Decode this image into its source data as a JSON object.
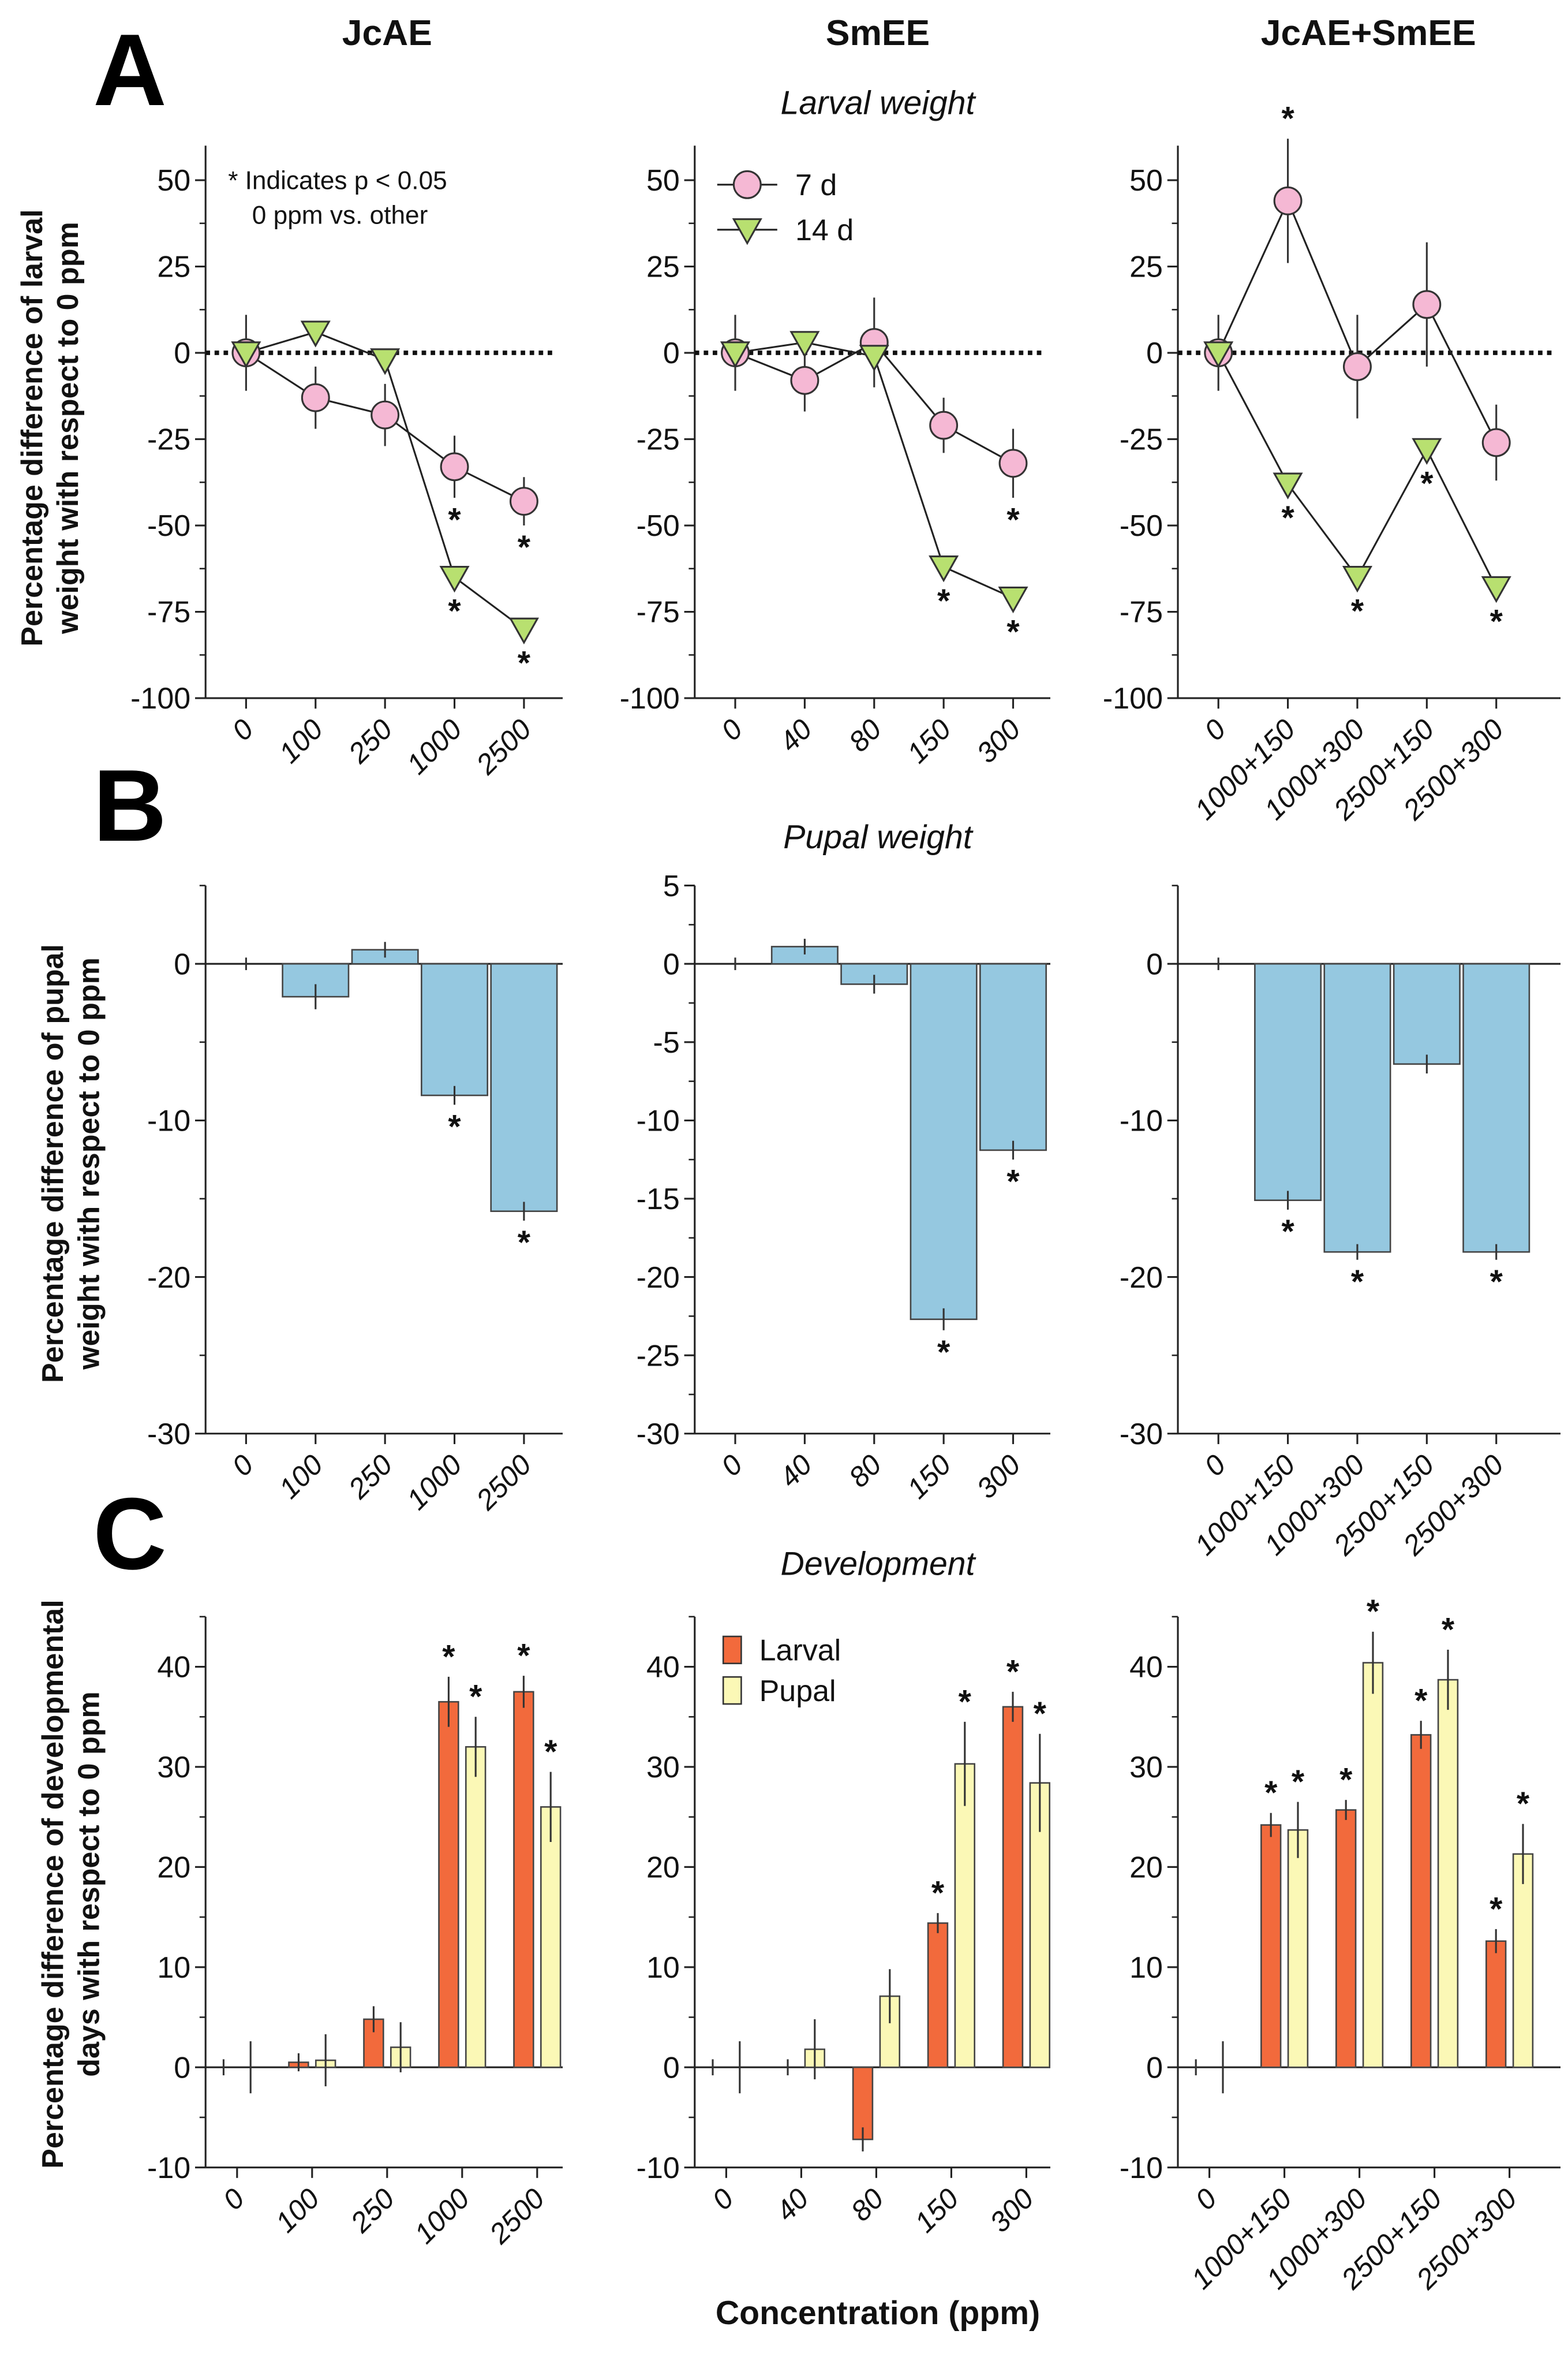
{
  "columns": [
    "JcAE",
    "SmEE",
    "JcAE+SmEE"
  ],
  "panel_letters": [
    "A",
    "B",
    "C"
  ],
  "subtitles": [
    "Larval weight",
    "Pupal weight",
    "Development"
  ],
  "ylabels": [
    [
      "Percentage difference of larval",
      "weight with respect to 0 ppm"
    ],
    [
      "Percentage difference of pupal",
      "weight with respect to 0 ppm"
    ],
    [
      "Percentage difference of developmental",
      "days with respect to 0 ppm"
    ]
  ],
  "xlabel": "Concentration (ppm)",
  "note": [
    "* Indicates p < 0.05",
    "0 ppm vs. other"
  ],
  "significance_marker": "*",
  "colors": {
    "day7": "#f5b8d4",
    "day14": "#b8e070",
    "pupal_weight_bar": "#95c8e0",
    "larval_bar": "#f26a3c",
    "pupal_bar": "#fbf8b6"
  },
  "chart_data": [
    {
      "type": "line",
      "title": "Larval weight",
      "ylim": [
        -100,
        60
      ],
      "yticks": [
        "50",
        "25",
        "0",
        "-25",
        "-50",
        "-75",
        "-100"
      ],
      "zero_line": "dotted",
      "legend": "top-left (SmEE panel)",
      "groups": [
        {
          "column": "JcAE",
          "categories": [
            "0",
            "100",
            "250",
            "1000",
            "2500"
          ],
          "series": [
            {
              "name": "7 d",
              "values": [
                0,
                -13,
                -18,
                -33,
                -43
              ],
              "errors": [
                11,
                9,
                9,
                9,
                7
              ],
              "significant": [
                false,
                false,
                false,
                true,
                true
              ]
            },
            {
              "name": "14 d",
              "values": [
                0,
                6,
                -2,
                -65,
                -80
              ],
              "errors": [
                0,
                0,
                0,
                0,
                0
              ],
              "significant": [
                false,
                false,
                false,
                true,
                true
              ]
            }
          ]
        },
        {
          "column": "SmEE",
          "categories": [
            "0",
            "40",
            "80",
            "150",
            "300"
          ],
          "series": [
            {
              "name": "7 d",
              "values": [
                0,
                -8,
                3,
                -21,
                -32
              ],
              "errors": [
                11,
                9,
                13,
                8,
                10
              ],
              "significant": [
                false,
                false,
                false,
                false,
                true
              ]
            },
            {
              "name": "14 d",
              "values": [
                0,
                3,
                -1,
                -62,
                -71
              ],
              "errors": [
                0,
                0,
                0,
                0,
                0
              ],
              "significant": [
                false,
                false,
                false,
                true,
                true
              ]
            }
          ]
        },
        {
          "column": "JcAE+SmEE",
          "categories": [
            "0",
            "1000+150",
            "1000+300",
            "2500+150",
            "2500+300"
          ],
          "series": [
            {
              "name": "7 d",
              "values": [
                0,
                44,
                -4,
                14,
                -26
              ],
              "errors": [
                11,
                18,
                15,
                18,
                11
              ],
              "significant": [
                false,
                true,
                false,
                false,
                false
              ]
            },
            {
              "name": "14 d",
              "values": [
                0,
                -38,
                -65,
                -28,
                -68
              ],
              "errors": [
                0,
                0,
                0,
                0,
                0
              ],
              "significant": [
                false,
                true,
                true,
                true,
                true
              ]
            }
          ]
        }
      ]
    },
    {
      "type": "bar",
      "title": "Pupal weight",
      "ylim": [
        -30,
        5
      ],
      "zero_line": "solid",
      "groups": [
        {
          "column": "JcAE",
          "categories": [
            "0",
            "100",
            "250",
            "1000",
            "2500"
          ],
          "yticks": [
            "0",
            "-10",
            "-20",
            "-30"
          ],
          "series": [
            {
              "values": [
                0,
                -2.1,
                0.9,
                -8.4,
                -15.8
              ],
              "errors": [
                0.4,
                0.8,
                0.5,
                0.6,
                0.6
              ],
              "significant": [
                false,
                false,
                false,
                true,
                true
              ]
            }
          ]
        },
        {
          "column": "SmEE",
          "categories": [
            "0",
            "40",
            "80",
            "150",
            "300"
          ],
          "yticks": [
            "5",
            "0",
            "-5",
            "-10",
            "-15",
            "-20",
            "-25",
            "-30"
          ],
          "series": [
            {
              "values": [
                0,
                1.1,
                -1.3,
                -22.7,
                -11.9
              ],
              "errors": [
                0.4,
                0.5,
                0.6,
                0.7,
                0.6
              ],
              "significant": [
                false,
                false,
                false,
                true,
                true
              ]
            }
          ]
        },
        {
          "column": "JcAE+SmEE",
          "categories": [
            "0",
            "1000+150",
            "1000+300",
            "2500+150",
            "2500+300"
          ],
          "yticks": [
            "0",
            "-10",
            "-20",
            "-30"
          ],
          "series": [
            {
              "values": [
                0,
                -15.1,
                -18.4,
                -6.4,
                -18.4
              ],
              "errors": [
                0.4,
                0.6,
                0.5,
                0.6,
                0.5
              ],
              "significant": [
                false,
                true,
                true,
                false,
                true
              ]
            }
          ]
        }
      ]
    },
    {
      "type": "bar",
      "title": "Development",
      "ylim": [
        -10,
        45
      ],
      "yticks": [
        "40",
        "30",
        "20",
        "10",
        "0",
        "-10"
      ],
      "zero_line": "solid",
      "legend": "top-left (SmEE panel)",
      "groups": [
        {
          "column": "JcAE",
          "categories": [
            "0",
            "100",
            "250",
            "1000",
            "2500"
          ],
          "series": [
            {
              "name": "Larval",
              "values": [
                0,
                0.5,
                4.8,
                36.5,
                37.5
              ],
              "errors": [
                0.8,
                0.9,
                1.3,
                2.5,
                1.6
              ],
              "significant": [
                false,
                false,
                false,
                true,
                true
              ]
            },
            {
              "name": "Pupal",
              "values": [
                0,
                0.7,
                2.0,
                32.0,
                26.0
              ],
              "errors": [
                2.6,
                2.6,
                2.5,
                3.0,
                3.5
              ],
              "significant": [
                false,
                false,
                false,
                true,
                true
              ]
            }
          ]
        },
        {
          "column": "SmEE",
          "categories": [
            "0",
            "40",
            "80",
            "150",
            "300"
          ],
          "series": [
            {
              "name": "Larval",
              "values": [
                0,
                0,
                -7.2,
                14.4,
                36.0
              ],
              "errors": [
                0.8,
                0.8,
                1.2,
                1.0,
                1.5
              ],
              "significant": [
                false,
                false,
                false,
                true,
                true
              ]
            },
            {
              "name": "Pupal",
              "values": [
                0,
                1.8,
                7.1,
                30.3,
                28.4
              ],
              "errors": [
                2.6,
                3.0,
                2.7,
                4.2,
                4.9
              ],
              "significant": [
                false,
                false,
                false,
                true,
                true
              ]
            }
          ]
        },
        {
          "column": "JcAE+SmEE",
          "categories": [
            "0",
            "1000+150",
            "1000+300",
            "2500+150",
            "2500+300"
          ],
          "series": [
            {
              "name": "Larval",
              "values": [
                0,
                24.2,
                25.7,
                33.2,
                12.6
              ],
              "errors": [
                0.8,
                1.2,
                1.0,
                1.4,
                1.2
              ],
              "significant": [
                false,
                true,
                true,
                true,
                true
              ]
            },
            {
              "name": "Pupal",
              "values": [
                0,
                23.7,
                40.4,
                38.7,
                21.3
              ],
              "errors": [
                2.6,
                2.8,
                3.1,
                3.0,
                3.0
              ],
              "significant": [
                false,
                true,
                true,
                true,
                true
              ]
            }
          ]
        }
      ]
    }
  ]
}
